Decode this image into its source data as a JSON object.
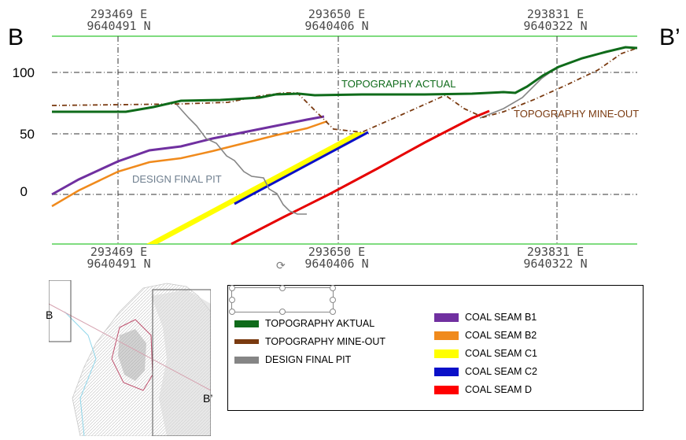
{
  "section": {
    "start_label": "B",
    "end_label": "B’"
  },
  "y_labels": [
    "100",
    "50",
    "0"
  ],
  "coords_top": [
    {
      "e": "293469  E",
      "n": "9640491  N"
    },
    {
      "e": "293650  E",
      "n": "9640406  N"
    },
    {
      "e": "293831  E",
      "n": "9640322  N"
    }
  ],
  "coords_bottom": [
    {
      "e": "293469  E",
      "n": "9640491  N"
    },
    {
      "e": "293650  E",
      "n": "9640406  N"
    },
    {
      "e": "293831  E",
      "n": "9640322  N"
    }
  ],
  "plot_labels": {
    "topo_actual": "TOPOGRAPHY ACTUAL",
    "topo_mineout": "TOPOGRAPHY MINE-OUT",
    "design_pit": "DESIGN FINAL PIT"
  },
  "legend": {
    "left": [
      {
        "label": "TOPOGRAPHY AKTUAL",
        "color": "#0f6b1a"
      },
      {
        "label": "TOPOGRAPHY MINE-OUT",
        "color": "#7a3a10"
      },
      {
        "label": "DESIGN FINAL PIT",
        "color": "#858585"
      }
    ],
    "right": [
      {
        "label": "COAL SEAM B1",
        "color": "#7030a0"
      },
      {
        "label": "COAL SEAM B2",
        "color": "#f08a1c"
      },
      {
        "label": "COAL SEAM C1",
        "color": "#ffff00"
      },
      {
        "label": "COAL SEAM C2",
        "color": "#0a10c8"
      },
      {
        "label": "COAL SEAM D",
        "color": "#ff0000"
      }
    ]
  },
  "inset_map": {
    "label_b": "B",
    "label_b_prime": "B’"
  },
  "colors": {
    "frame_green": "#7fdc7f",
    "grid": "#333333",
    "topo_actual": "#0f6b1a",
    "topo_mineout": "#7a3a10",
    "design_pit": "#858585",
    "seam_b1": "#7030a0",
    "seam_b2": "#f08a1c",
    "seam_c1": "#ffff00",
    "seam_c2": "#0a10c8",
    "seam_d": "#e60000"
  }
}
